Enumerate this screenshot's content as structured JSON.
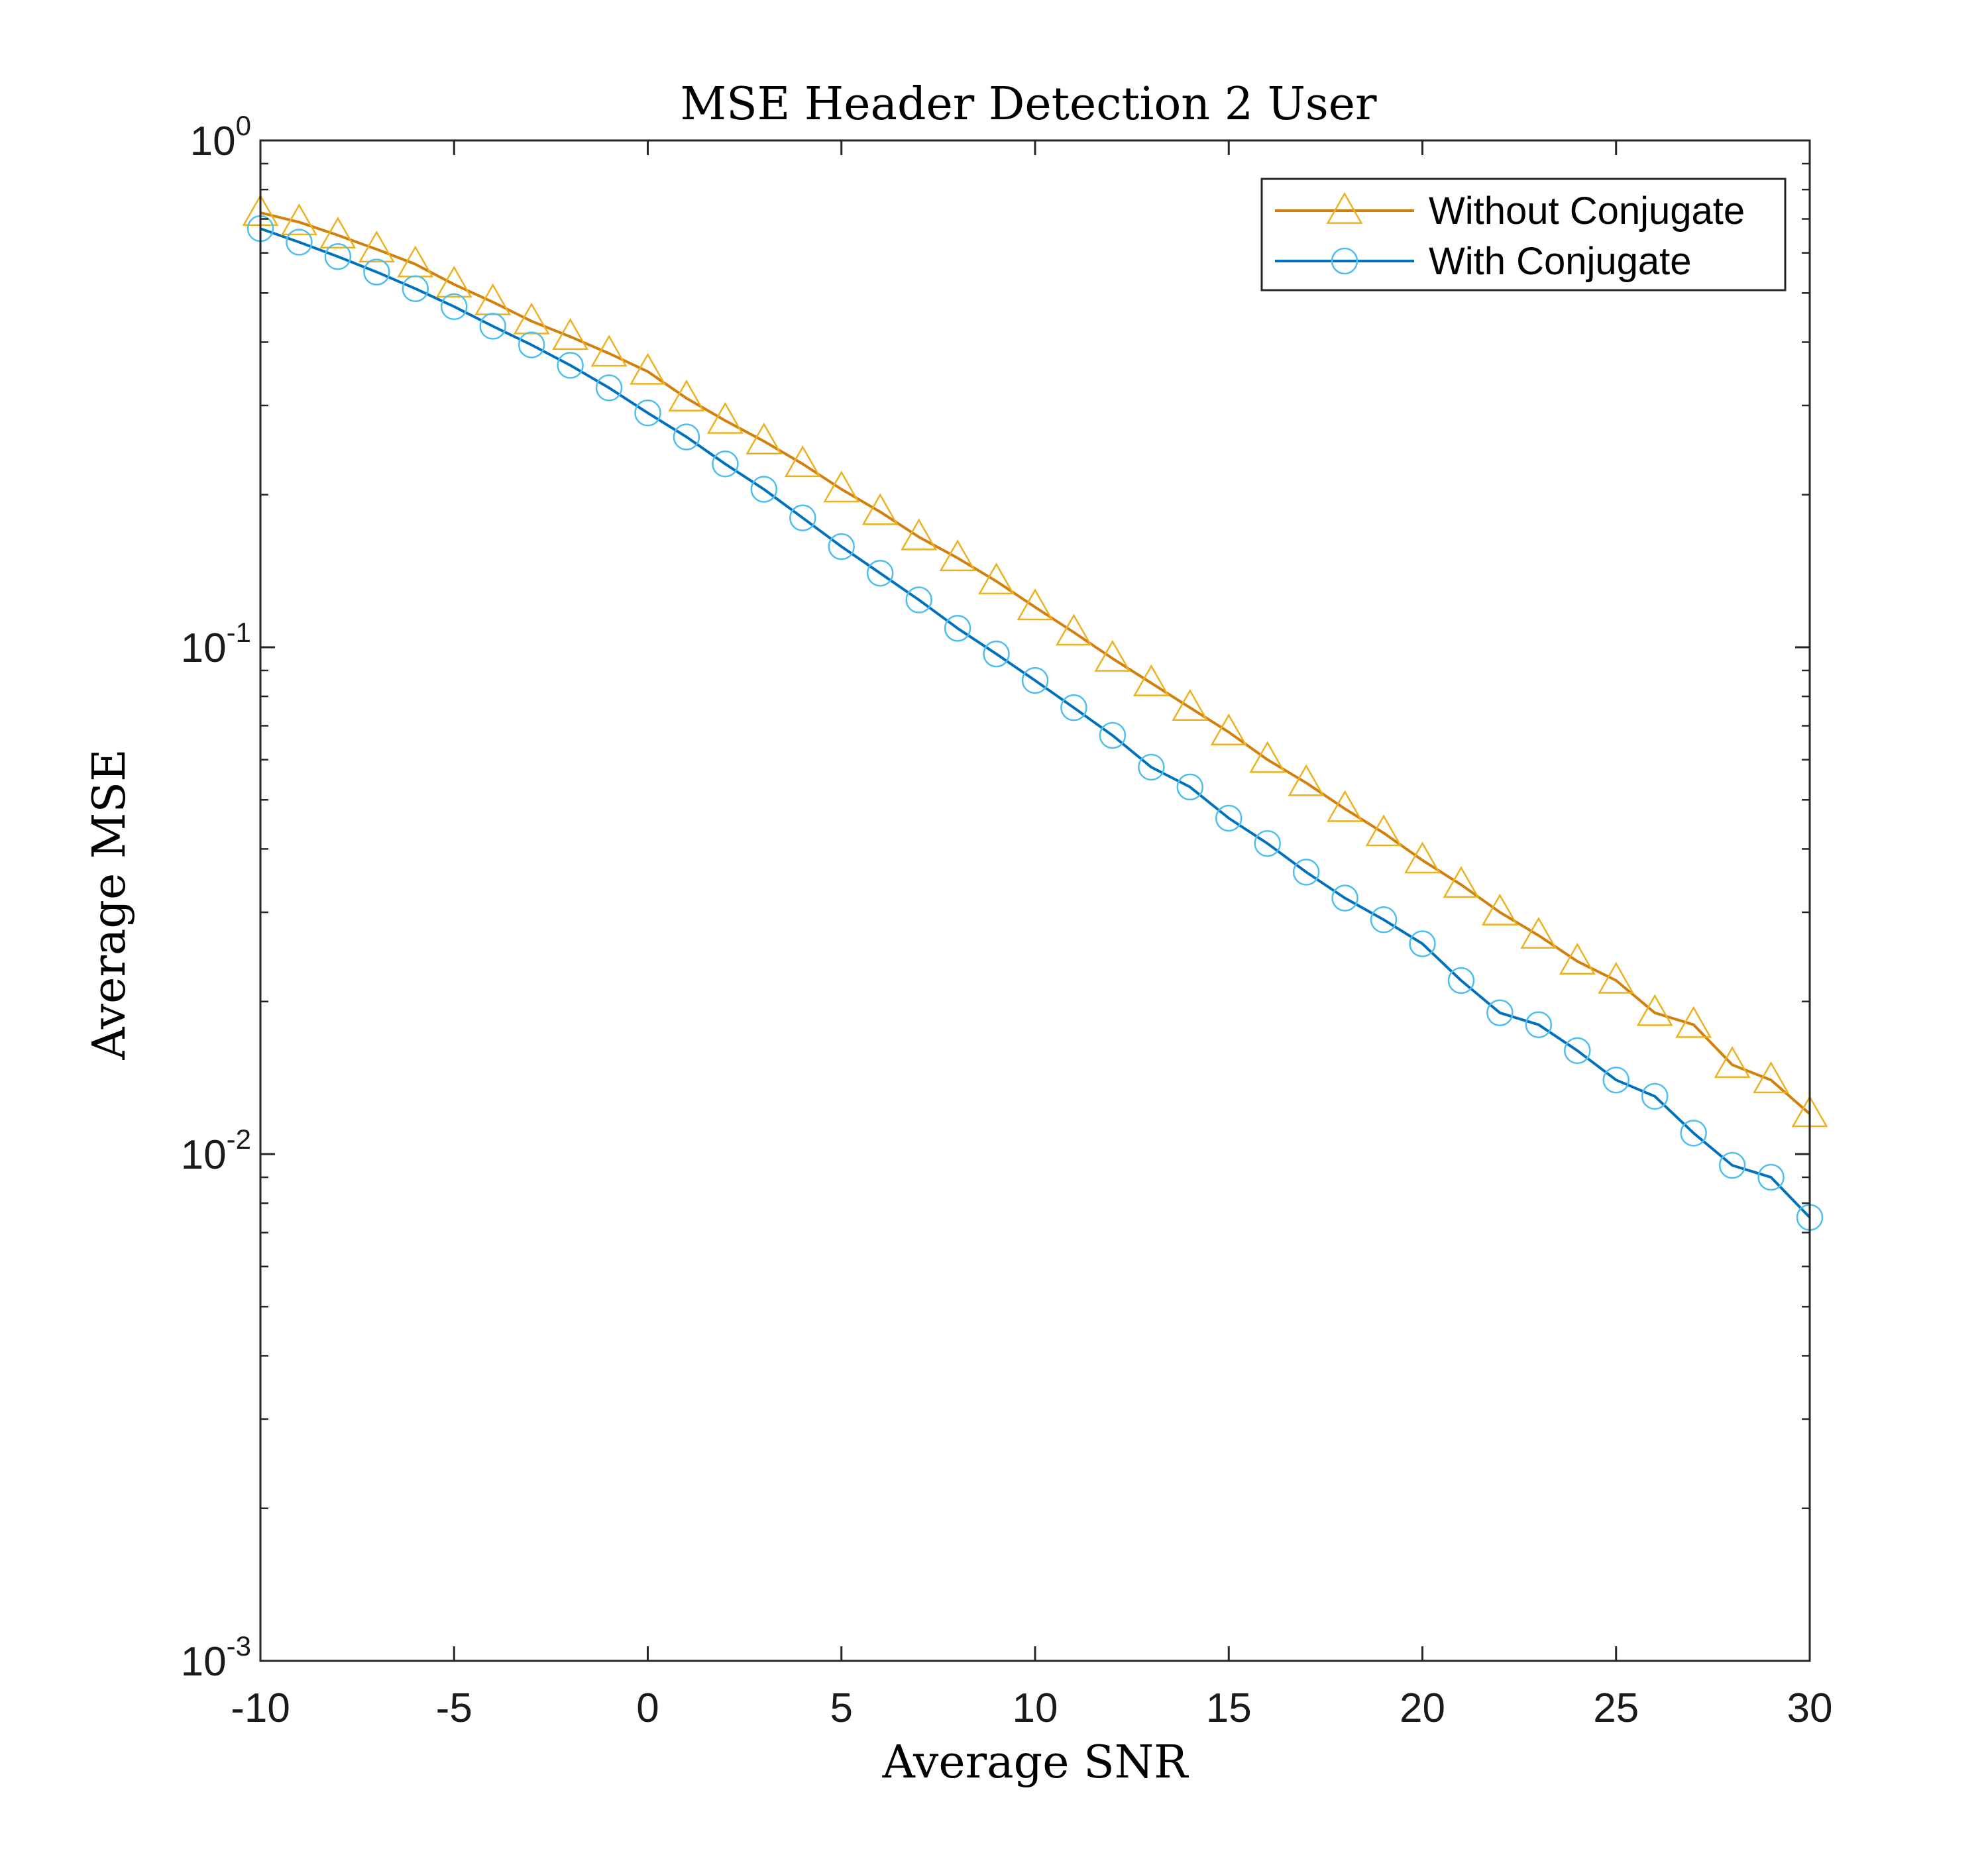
{
  "chart_data": {
    "type": "line",
    "title": "MSE Header Detection 2 User",
    "xlabel": "Average SNR",
    "ylabel": "Average MSE",
    "xlim": [
      -10,
      30
    ],
    "ylim": [
      0.001,
      1
    ],
    "yscale": "log",
    "grid": false,
    "legend_position": "top-right",
    "x_ticks": [
      {
        "value": -10,
        "label": "-10"
      },
      {
        "value": -5,
        "label": "-5"
      },
      {
        "value": 0,
        "label": "0"
      },
      {
        "value": 5,
        "label": "5"
      },
      {
        "value": 10,
        "label": "10"
      },
      {
        "value": 15,
        "label": "15"
      },
      {
        "value": 20,
        "label": "20"
      },
      {
        "value": 25,
        "label": "25"
      },
      {
        "value": 30,
        "label": "30"
      }
    ],
    "y_ticks": [
      {
        "value": 1,
        "base": "10",
        "exp": "0"
      },
      {
        "value": 0.1,
        "base": "10",
        "exp": "-1"
      },
      {
        "value": 0.01,
        "base": "10",
        "exp": "-2"
      },
      {
        "value": 0.001,
        "base": "10",
        "exp": "-3"
      }
    ],
    "x": [
      -10,
      -9,
      -8,
      -7,
      -6,
      -5,
      -4,
      -3,
      -2,
      -1,
      0,
      1,
      2,
      3,
      4,
      5,
      6,
      7,
      8,
      9,
      10,
      11,
      12,
      13,
      14,
      15,
      16,
      17,
      18,
      19,
      20,
      21,
      22,
      23,
      24,
      25,
      26,
      27,
      28,
      29,
      30
    ],
    "series": [
      {
        "name": "Without Conjugate",
        "color": "#D95319",
        "line_color": "#D37F0C",
        "marker": "triangle",
        "marker_color": "#EDB120",
        "values": [
          0.72,
          0.69,
          0.65,
          0.61,
          0.57,
          0.52,
          0.48,
          0.44,
          0.41,
          0.38,
          0.35,
          0.31,
          0.28,
          0.255,
          0.23,
          0.205,
          0.185,
          0.165,
          0.15,
          0.135,
          0.12,
          0.107,
          0.095,
          0.085,
          0.076,
          0.068,
          0.06,
          0.054,
          0.048,
          0.043,
          0.038,
          0.034,
          0.03,
          0.027,
          0.024,
          0.022,
          0.019,
          0.018,
          0.015,
          0.014,
          0.012
        ]
      },
      {
        "name": "With Conjugate",
        "color": "#0072BD",
        "line_color": "#0072BD",
        "marker": "circle",
        "marker_color": "#4DBEEE",
        "values": [
          0.67,
          0.63,
          0.59,
          0.55,
          0.51,
          0.47,
          0.43,
          0.395,
          0.36,
          0.325,
          0.29,
          0.26,
          0.23,
          0.205,
          0.18,
          0.158,
          0.14,
          0.124,
          0.109,
          0.097,
          0.086,
          0.076,
          0.067,
          0.058,
          0.053,
          0.046,
          0.041,
          0.036,
          0.032,
          0.029,
          0.026,
          0.022,
          0.019,
          0.018,
          0.016,
          0.014,
          0.013,
          0.011,
          0.0095,
          0.009,
          0.0075
        ]
      }
    ]
  }
}
